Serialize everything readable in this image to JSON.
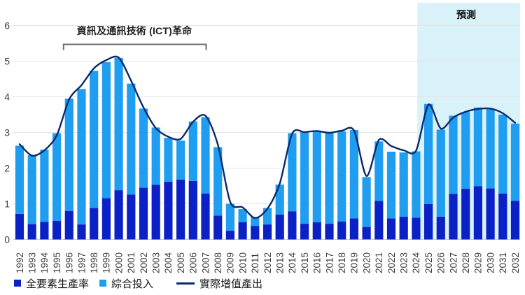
{
  "forecast_label": "預測",
  "annotation_label": "資訊及通訊技術 (ICT)革命",
  "chart_data": {
    "type": "bar",
    "subtype": "stacked-bars-with-line-overlay",
    "title": "",
    "xlabel": "",
    "ylabel": "",
    "ylim": [
      0,
      6
    ],
    "yticks": [
      0,
      1,
      2,
      3,
      4,
      5,
      6
    ],
    "grid": true,
    "grid_color": "#e6e6e6",
    "baseline_color": "#c9c9c9",
    "text_color": "#3d3d3d",
    "legend_position": "bottom",
    "categories": [
      "1992",
      "1993",
      "1994",
      "1995",
      "1996",
      "1997",
      "1998",
      "1999",
      "2000",
      "2001",
      "2002",
      "2003",
      "2004",
      "2005",
      "2006",
      "2007",
      "2008",
      "2009",
      "2010",
      "2011",
      "2012",
      "2013",
      "2014",
      "2015",
      "2016",
      "2017",
      "2018",
      "2019",
      "2020",
      "2021",
      "2022",
      "2023",
      "2024",
      "2025",
      "2026",
      "2027",
      "2028",
      "2029",
      "2030",
      "2031",
      "2032"
    ],
    "series": [
      {
        "name": "全要素生產率",
        "kind": "bar",
        "color": "#0b21c8",
        "values": [
          0.72,
          0.43,
          0.49,
          0.52,
          0.8,
          0.42,
          0.88,
          1.16,
          1.38,
          1.26,
          1.45,
          1.53,
          1.62,
          1.68,
          1.64,
          1.29,
          0.67,
          0.25,
          0.48,
          0.38,
          0.42,
          0.7,
          0.79,
          0.44,
          0.48,
          0.44,
          0.5,
          0.59,
          0.35,
          1.08,
          0.59,
          0.64,
          0.61,
          0.99,
          0.64,
          1.28,
          1.42,
          1.49,
          1.43,
          1.29,
          1.08
        ]
      },
      {
        "name": "綜合投入",
        "kind": "bar",
        "color": "#1f9df1",
        "values": [
          1.91,
          1.93,
          2.03,
          2.46,
          3.15,
          3.8,
          3.85,
          3.81,
          3.71,
          3.11,
          2.22,
          1.61,
          1.23,
          1.09,
          1.67,
          2.14,
          1.92,
          0.75,
          0.37,
          0.25,
          0.46,
          0.84,
          2.19,
          2.59,
          2.57,
          2.55,
          2.53,
          2.48,
          1.4,
          1.67,
          1.87,
          1.8,
          1.86,
          2.81,
          2.44,
          2.19,
          2.15,
          2.21,
          2.24,
          2.21,
          2.17
        ]
      },
      {
        "name": "實際增值產出",
        "kind": "line",
        "color": "#0a2a6b",
        "values": [
          2.67,
          2.35,
          2.5,
          2.92,
          3.93,
          4.33,
          4.8,
          5.03,
          5.1,
          4.45,
          3.7,
          3.12,
          2.88,
          2.82,
          3.3,
          3.47,
          2.66,
          1.05,
          0.9,
          0.6,
          0.86,
          1.57,
          2.97,
          3.01,
          3.04,
          2.99,
          3.05,
          3.05,
          1.78,
          2.79,
          2.62,
          2.5,
          2.49,
          3.78,
          3.11,
          3.42,
          3.58,
          3.66,
          3.67,
          3.54,
          3.27
        ]
      }
    ],
    "forecast": {
      "label": "預測",
      "start_category": "2025",
      "band_color": "#d9f1f8"
    },
    "annotation": {
      "label": "資訊及通訊技術 (ICT)革命",
      "span": [
        "1996",
        "2007"
      ],
      "bracket_color": "#6e6e6e"
    }
  },
  "legend": {
    "items": [
      {
        "label": "全要素生產率"
      },
      {
        "label": "綜合投入"
      },
      {
        "label": "實際增值產出"
      }
    ]
  }
}
